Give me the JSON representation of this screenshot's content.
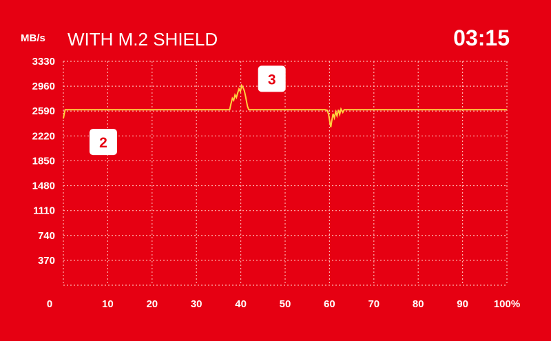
{
  "unit_label": "MB/s",
  "title": "WITH M.2 SHIELD",
  "timer": "03:15",
  "chart_data": {
    "type": "line",
    "title": "WITH M.2 SHIELD",
    "xlabel": "",
    "ylabel": "MB/s",
    "xlim": [
      0,
      100
    ],
    "ylim": [
      0,
      3330
    ],
    "x_ticks": [
      {
        "value": 0,
        "label": "0"
      },
      {
        "value": 10,
        "label": "10"
      },
      {
        "value": 20,
        "label": "20"
      },
      {
        "value": 30,
        "label": "30"
      },
      {
        "value": 40,
        "label": "40"
      },
      {
        "value": 50,
        "label": "50"
      },
      {
        "value": 60,
        "label": "60"
      },
      {
        "value": 70,
        "label": "70"
      },
      {
        "value": 80,
        "label": "80"
      },
      {
        "value": 90,
        "label": "90"
      },
      {
        "value": 100,
        "label": "100%"
      }
    ],
    "y_ticks": [
      {
        "value": 370,
        "label": "370"
      },
      {
        "value": 740,
        "label": "740"
      },
      {
        "value": 1110,
        "label": "1110"
      },
      {
        "value": 1480,
        "label": "1480"
      },
      {
        "value": 1850,
        "label": "1850"
      },
      {
        "value": 2220,
        "label": "2220"
      },
      {
        "value": 2590,
        "label": "2590"
      },
      {
        "value": 2960,
        "label": "2960"
      },
      {
        "value": 3330,
        "label": "3330"
      }
    ],
    "grid": true,
    "series": [
      {
        "color": "#ffd23f",
        "points": [
          [
            0,
            2480
          ],
          [
            0.2,
            2550
          ],
          [
            0.4,
            2610
          ],
          [
            3,
            2610
          ],
          [
            10,
            2610
          ],
          [
            20,
            2610
          ],
          [
            30,
            2610
          ],
          [
            37.5,
            2610
          ],
          [
            37.8,
            2700
          ],
          [
            38.1,
            2780
          ],
          [
            38.4,
            2750
          ],
          [
            38.7,
            2830
          ],
          [
            39.0,
            2790
          ],
          [
            39.3,
            2860
          ],
          [
            39.6,
            2920
          ],
          [
            39.9,
            2880
          ],
          [
            40.2,
            2970
          ],
          [
            40.5,
            2940
          ],
          [
            40.8,
            2890
          ],
          [
            41.1,
            2800
          ],
          [
            41.5,
            2660
          ],
          [
            41.8,
            2610
          ],
          [
            50,
            2610
          ],
          [
            59,
            2610
          ],
          [
            59.5,
            2600
          ],
          [
            59.8,
            2540
          ],
          [
            60.1,
            2420
          ],
          [
            60.3,
            2350
          ],
          [
            60.5,
            2440
          ],
          [
            60.8,
            2550
          ],
          [
            61.1,
            2490
          ],
          [
            61.4,
            2580
          ],
          [
            61.7,
            2520
          ],
          [
            62.0,
            2610
          ],
          [
            62.3,
            2540
          ],
          [
            62.6,
            2620
          ],
          [
            63.0,
            2570
          ],
          [
            63.3,
            2610
          ],
          [
            70,
            2610
          ],
          [
            80,
            2610
          ],
          [
            90,
            2610
          ],
          [
            100,
            2610
          ]
        ]
      }
    ],
    "annotations": [
      {
        "label": "2",
        "x": 9,
        "y": 2130
      },
      {
        "label": "3",
        "x": 47,
        "y": 3070
      }
    ]
  }
}
